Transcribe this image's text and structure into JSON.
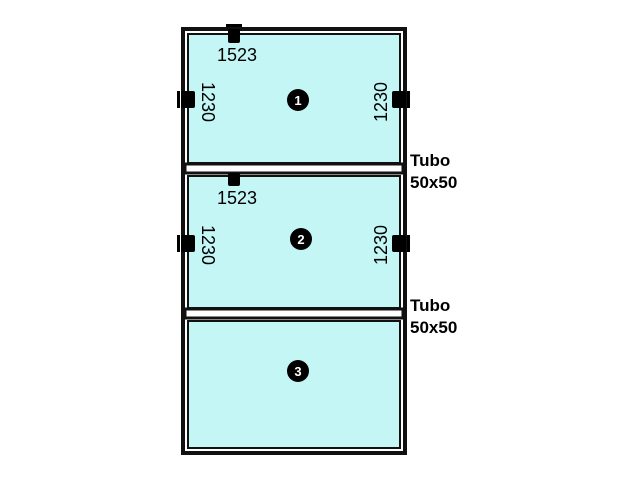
{
  "colors": {
    "frame": "#111111",
    "glass": "#c5f6f6",
    "marker": "#000000"
  },
  "panels": [
    {
      "number": "1",
      "width_label": "1523",
      "left_height_label": "1230",
      "right_height_label": "1230"
    },
    {
      "number": "2",
      "width_label": "1523",
      "left_height_label": "1230",
      "right_height_label": "1230"
    },
    {
      "number": "3"
    }
  ],
  "tubes": [
    {
      "line1": "Tubo",
      "line2": "50x50"
    },
    {
      "line1": "Tubo",
      "line2": "50x50"
    }
  ]
}
